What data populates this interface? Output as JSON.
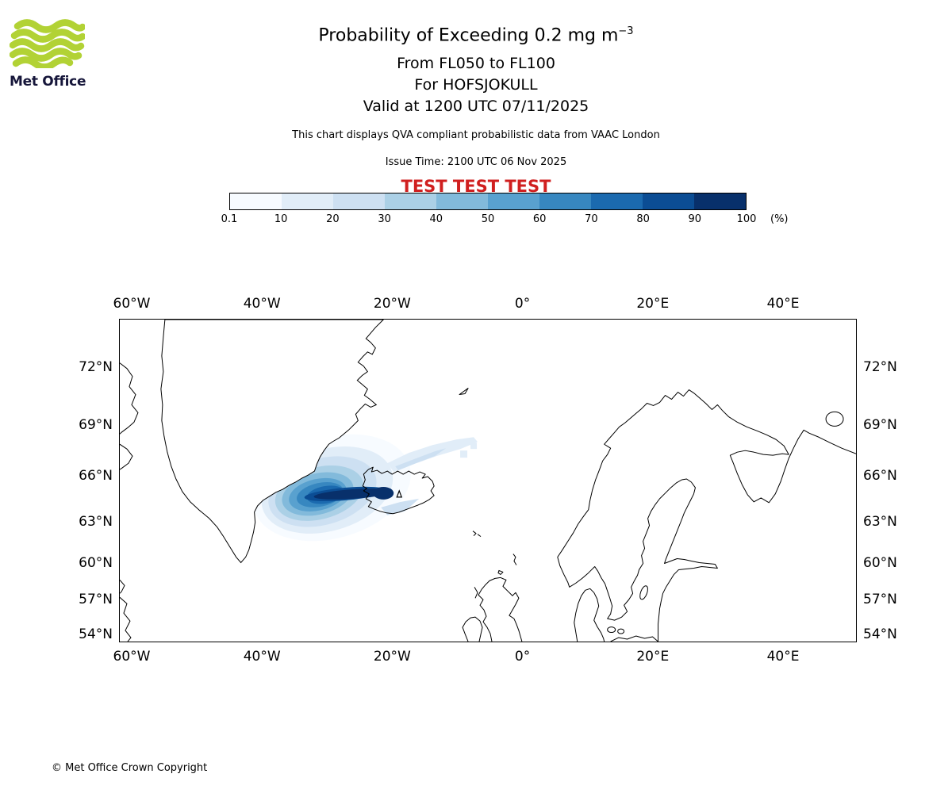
{
  "logo": {
    "brand": "Met Office"
  },
  "header": {
    "title_main": "Probability of Exceeding 0.2 mg m",
    "title_sup": "−3",
    "line1": "From FL050 to FL100",
    "line2": "For HOFSJOKULL",
    "line3": "Valid at 1200 UTC 07/11/2025",
    "description": "This chart displays QVA compliant probabilistic data from VAAC London",
    "issue_time": "Issue Time: 2100 UTC 06 Nov 2025",
    "test_banner": "TEST TEST TEST"
  },
  "colorbar": {
    "tick_labels": [
      "0.1",
      "10",
      "20",
      "30",
      "40",
      "50",
      "60",
      "70",
      "80",
      "90",
      "100"
    ],
    "unit_label": "(%)",
    "colors": [
      "#f7fbff",
      "#e1edf8",
      "#cde0f2",
      "#abd0e6",
      "#82badb",
      "#59a1cf",
      "#3787c0",
      "#1b6aaf",
      "#0b4d94",
      "#08306b"
    ]
  },
  "map": {
    "lon_ticks": [
      "60°W",
      "40°W",
      "20°W",
      "0°",
      "20°E",
      "40°E"
    ],
    "lat_ticks": [
      "72°N",
      "69°N",
      "66°N",
      "63°N",
      "60°N",
      "57°N",
      "54°N"
    ]
  },
  "footer": {
    "copyright": "© Met Office Crown Copyright"
  },
  "chart_data": {
    "type": "heatmap",
    "title": "Probability of Exceeding 0.2 mg m−3",
    "subtitle": [
      "From FL050 to FL100",
      "For HOFSJOKULL",
      "Valid at 1200 UTC 07/11/2025"
    ],
    "colorbar_bin_edges_percent": [
      0.1,
      10,
      20,
      30,
      40,
      50,
      60,
      70,
      80,
      90,
      100
    ],
    "unit": "%",
    "x_axis": {
      "ticks": [
        "60°W",
        "40°W",
        "20°W",
        "0°",
        "20°E",
        "40°E"
      ],
      "approx_range_deg": [
        -62,
        51
      ]
    },
    "y_axis": {
      "ticks": [
        "72°N",
        "69°N",
        "66°N",
        "63°N",
        "60°N",
        "57°N",
        "54°N"
      ],
      "approx_range_deg": [
        53,
        74.5
      ],
      "projection": "Mercator"
    },
    "plume": {
      "description": "Volcanic ash probability plume centred southwest of Iceland, elongated WSW–ENE, faint streak extending northeast of Iceland",
      "max_probability_percent": 100,
      "core_location": {
        "lon": -26,
        "lat": 64.5
      },
      "approx_extent": {
        "west_lon": -41,
        "east_lon": -8,
        "south_lat": 62,
        "north_lat": 68.5
      }
    }
  }
}
